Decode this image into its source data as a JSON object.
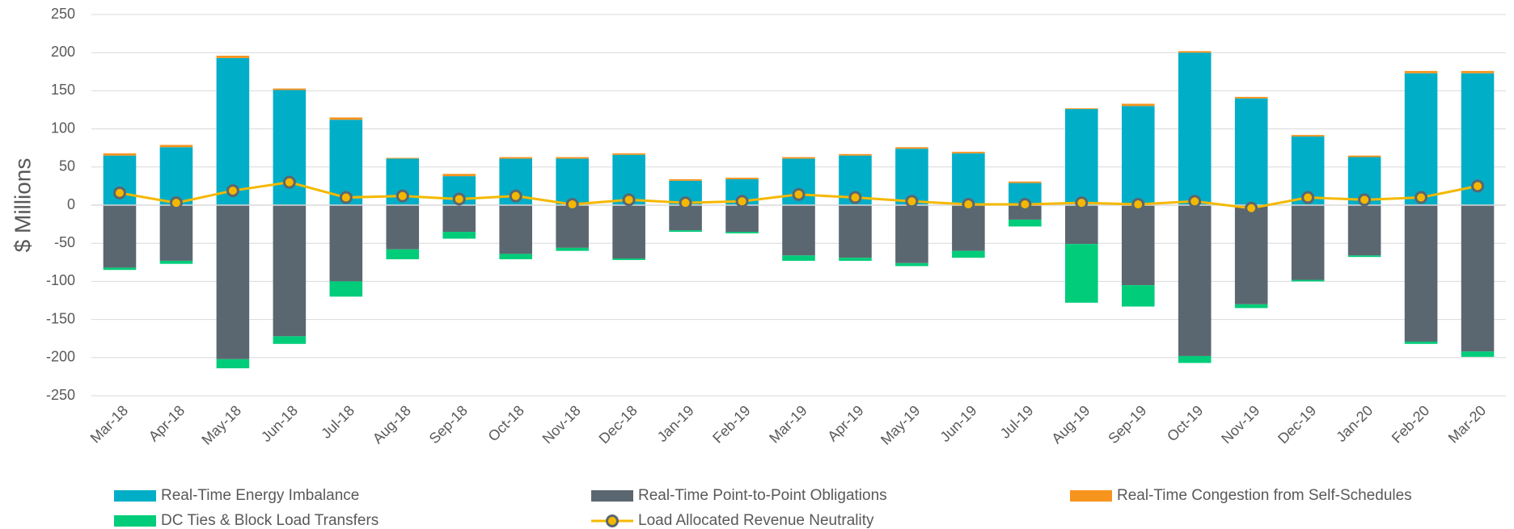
{
  "chart_data": {
    "type": "bar",
    "stacked": true,
    "y_label": "$ Millions",
    "categories": [
      "Mar-18",
      "Apr-18",
      "May-18",
      "Jun-18",
      "Jul-18",
      "Aug-18",
      "Sep-18",
      "Oct-18",
      "Nov-18",
      "Dec-18",
      "Jan-19",
      "Feb-19",
      "Mar-19",
      "Apr-19",
      "May-19",
      "Jun-19",
      "Jul-19",
      "Aug-19",
      "Sep-19",
      "Oct-19",
      "Nov-19",
      "Dec-19",
      "Jan-20",
      "Feb-20",
      "Mar-20"
    ],
    "series": [
      {
        "name": "Real-Time Energy Imbalance",
        "type": "bar",
        "color": "#00aec7",
        "values": [
          65,
          76,
          193,
          151,
          112,
          61,
          38,
          61,
          61,
          66,
          32,
          34,
          61,
          65,
          74,
          68,
          29,
          126,
          130,
          200,
          140,
          90,
          63,
          173,
          173
        ]
      },
      {
        "name": "Real-Time Point-to-Point Obligations",
        "type": "bar",
        "color": "#5b6770",
        "values": [
          -82,
          -73,
          -202,
          -172,
          -100,
          -58,
          -35,
          -64,
          -56,
          -70,
          -33,
          -35,
          -66,
          -69,
          -76,
          -60,
          -19,
          -51,
          -105,
          -198,
          -130,
          -98,
          -66,
          -179,
          -192
        ]
      },
      {
        "name": "Real-Time Congestion from Self-Schedules",
        "type": "bar",
        "color": "#f7941d",
        "values": [
          3,
          3,
          3,
          2,
          3,
          1,
          3,
          2,
          2,
          2,
          2,
          2,
          2,
          2,
          2,
          2,
          2,
          1,
          3,
          2,
          2,
          2,
          2,
          3,
          3
        ]
      },
      {
        "name": "DC Ties & Block Load Transfers",
        "type": "bar",
        "color": "#00cc7a",
        "values": [
          -3,
          -4,
          -12,
          -10,
          -20,
          -13,
          -9,
          -7,
          -4,
          -2,
          -2,
          -2,
          -7,
          -4,
          -4,
          -9,
          -9,
          -77,
          -28,
          -9,
          -5,
          -2,
          -2,
          -3,
          -7
        ]
      },
      {
        "name": "Load Allocated Revenue Neutrality",
        "type": "line",
        "color": "#f5b800",
        "marker_edge": "#5b6770",
        "values": [
          16,
          3,
          19,
          30,
          10,
          12,
          8,
          12,
          1,
          7,
          3,
          5,
          14,
          10,
          5,
          1,
          1,
          3,
          1,
          5,
          -4,
          10,
          7,
          10,
          25
        ]
      }
    ],
    "ylim": [
      -250,
      250
    ],
    "yticks": [
      -250,
      -200,
      -150,
      -100,
      -50,
      0,
      50,
      100,
      150,
      200,
      250
    ],
    "grid": true
  }
}
